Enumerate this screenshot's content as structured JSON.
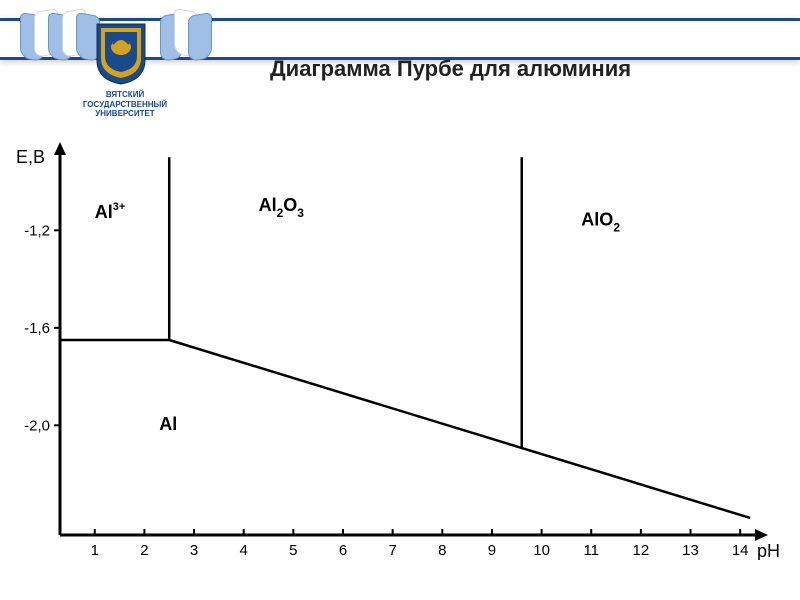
{
  "header": {
    "university_line1": "ВЯТСКИЙ",
    "university_line2": "ГОСУДАРСТВЕННЫЙ",
    "university_line3": "УНИВЕРСИТЕТ",
    "band_color": "#1a4a8a",
    "ribbon_blue": "#9fbfe6",
    "shield_blue": "#1a4a8a",
    "shield_gold": "#d4a222"
  },
  "title": "Диаграмма Пурбе для алюминия",
  "chart": {
    "type": "pourbaix-diagram",
    "background_color": "#ffffff",
    "axis_color": "#000000",
    "line_color": "#000000",
    "axis_width": 3,
    "line_width": 2.5,
    "x_label": "рН",
    "y_label": "E,В",
    "x_ticks": [
      1,
      2,
      3,
      4,
      5,
      6,
      7,
      8,
      9,
      10,
      11,
      12,
      13,
      14
    ],
    "y_ticks": [
      "-1,2",
      "-1,6",
      "-2,0"
    ],
    "y_tick_values": [
      -1.2,
      -1.6,
      -2.0
    ],
    "vertical_lines": [
      {
        "x_ph": 2.5,
        "y_top_E": -0.9,
        "joins_horizontal": true
      },
      {
        "x_ph": 9.6,
        "y_top_E": -0.9,
        "joins_diagonal": true
      }
    ],
    "horizontal_segment": {
      "from_x_axis": true,
      "to_ph": 2.5,
      "E": -1.65
    },
    "diagonal_segment": {
      "from_ph": 2.5,
      "from_E": -1.65,
      "to_ph": 14.2,
      "to_E": -2.38
    },
    "regions": [
      {
        "label_base": "Al",
        "sup": "3+",
        "pos_ph": 1.0,
        "pos_E": -1.15
      },
      {
        "label_base": "Al",
        "sub": "2",
        "tail": "O",
        "sub2": "3",
        "pos_ph": 4.3,
        "pos_E": -1.12
      },
      {
        "label_base": "AlO",
        "sub": "2",
        "pos_ph": 10.8,
        "pos_E": -1.18
      },
      {
        "label_base": "Al",
        "pos_ph": 2.3,
        "pos_E": -2.02
      }
    ],
    "label_fontsize": 18,
    "tick_fontsize": 15
  }
}
